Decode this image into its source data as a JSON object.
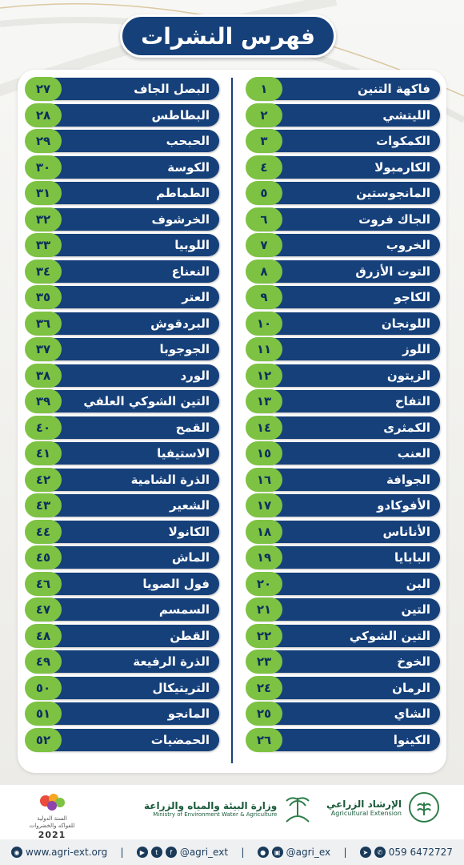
{
  "title": "فهرس النشرات",
  "right_column": [
    {
      "num": "١",
      "name": "فاكهة التنين"
    },
    {
      "num": "٢",
      "name": "الليتشي"
    },
    {
      "num": "٣",
      "name": "الكمكوات"
    },
    {
      "num": "٤",
      "name": "الكارمبولا"
    },
    {
      "num": "٥",
      "name": "المانجوستين"
    },
    {
      "num": "٦",
      "name": "الجاك فروت"
    },
    {
      "num": "٧",
      "name": "الخروب"
    },
    {
      "num": "٨",
      "name": "التوت الأزرق"
    },
    {
      "num": "٩",
      "name": "الكاجو"
    },
    {
      "num": "١٠",
      "name": "اللونجان"
    },
    {
      "num": "١١",
      "name": "اللوز"
    },
    {
      "num": "١٢",
      "name": "الزيتون"
    },
    {
      "num": "١٣",
      "name": "التفاح"
    },
    {
      "num": "١٤",
      "name": "الكمثرى"
    },
    {
      "num": "١٥",
      "name": "العنب"
    },
    {
      "num": "١٦",
      "name": "الجوافة"
    },
    {
      "num": "١٧",
      "name": "الأفوكادو"
    },
    {
      "num": "١٨",
      "name": "الأناناس"
    },
    {
      "num": "١٩",
      "name": "البابايا"
    },
    {
      "num": "٢٠",
      "name": "البن"
    },
    {
      "num": "٢١",
      "name": "التين"
    },
    {
      "num": "٢٢",
      "name": "التين الشوكي"
    },
    {
      "num": "٢٣",
      "name": "الخوخ"
    },
    {
      "num": "٢٤",
      "name": "الرمان"
    },
    {
      "num": "٢٥",
      "name": "الشاي"
    },
    {
      "num": "٢٦",
      "name": "الكينوا"
    }
  ],
  "left_column": [
    {
      "num": "٢٧",
      "name": "البصل الجاف"
    },
    {
      "num": "٢٨",
      "name": "البطاطس"
    },
    {
      "num": "٢٩",
      "name": "الحبحب"
    },
    {
      "num": "٣٠",
      "name": "الكوسة"
    },
    {
      "num": "٣١",
      "name": "الطماطم"
    },
    {
      "num": "٣٢",
      "name": "الخرشوف"
    },
    {
      "num": "٣٣",
      "name": "اللوبيا"
    },
    {
      "num": "٣٤",
      "name": "النعناع"
    },
    {
      "num": "٣٥",
      "name": "العتر"
    },
    {
      "num": "٣٦",
      "name": "البردقوش"
    },
    {
      "num": "٣٧",
      "name": "الجوجوبا"
    },
    {
      "num": "٣٨",
      "name": "الورد"
    },
    {
      "num": "٣٩",
      "name": "التين الشوكي العلفي"
    },
    {
      "num": "٤٠",
      "name": "القمح"
    },
    {
      "num": "٤١",
      "name": "الاستيفيا"
    },
    {
      "num": "٤٢",
      "name": "الذرة الشامية"
    },
    {
      "num": "٤٣",
      "name": "الشعير"
    },
    {
      "num": "٤٤",
      "name": "الكانولا"
    },
    {
      "num": "٤٥",
      "name": "الماش"
    },
    {
      "num": "٤٦",
      "name": "فول الصويا"
    },
    {
      "num": "٤٧",
      "name": "السمسم"
    },
    {
      "num": "٤٨",
      "name": "القطن"
    },
    {
      "num": "٤٩",
      "name": "الذرة الرفيعة"
    },
    {
      "num": "٥٠",
      "name": "التريتيكال"
    },
    {
      "num": "٥١",
      "name": "المانجو"
    },
    {
      "num": "٥٢",
      "name": "الحمضيات"
    }
  ],
  "footer": {
    "agri_logo_ar": "الإرشاد الزراعي",
    "agri_logo_en": "Agricultural Extension",
    "ministry_ar": "وزارة البيئة والمياه والزراعة",
    "ministry_en": "Ministry of Environment Water & Agriculture",
    "year_ar_line1": "السنة الدولية",
    "year_ar_line2": "للفواكه والخضروات",
    "year_num": "2021",
    "phone": "059 6472727",
    "snap_handle": "@agri_ex",
    "twitter_handle": "@agri_ext",
    "website": "www.agri-ext.org"
  },
  "colors": {
    "navy": "#16407a",
    "green_badge": "#7dc242"
  }
}
